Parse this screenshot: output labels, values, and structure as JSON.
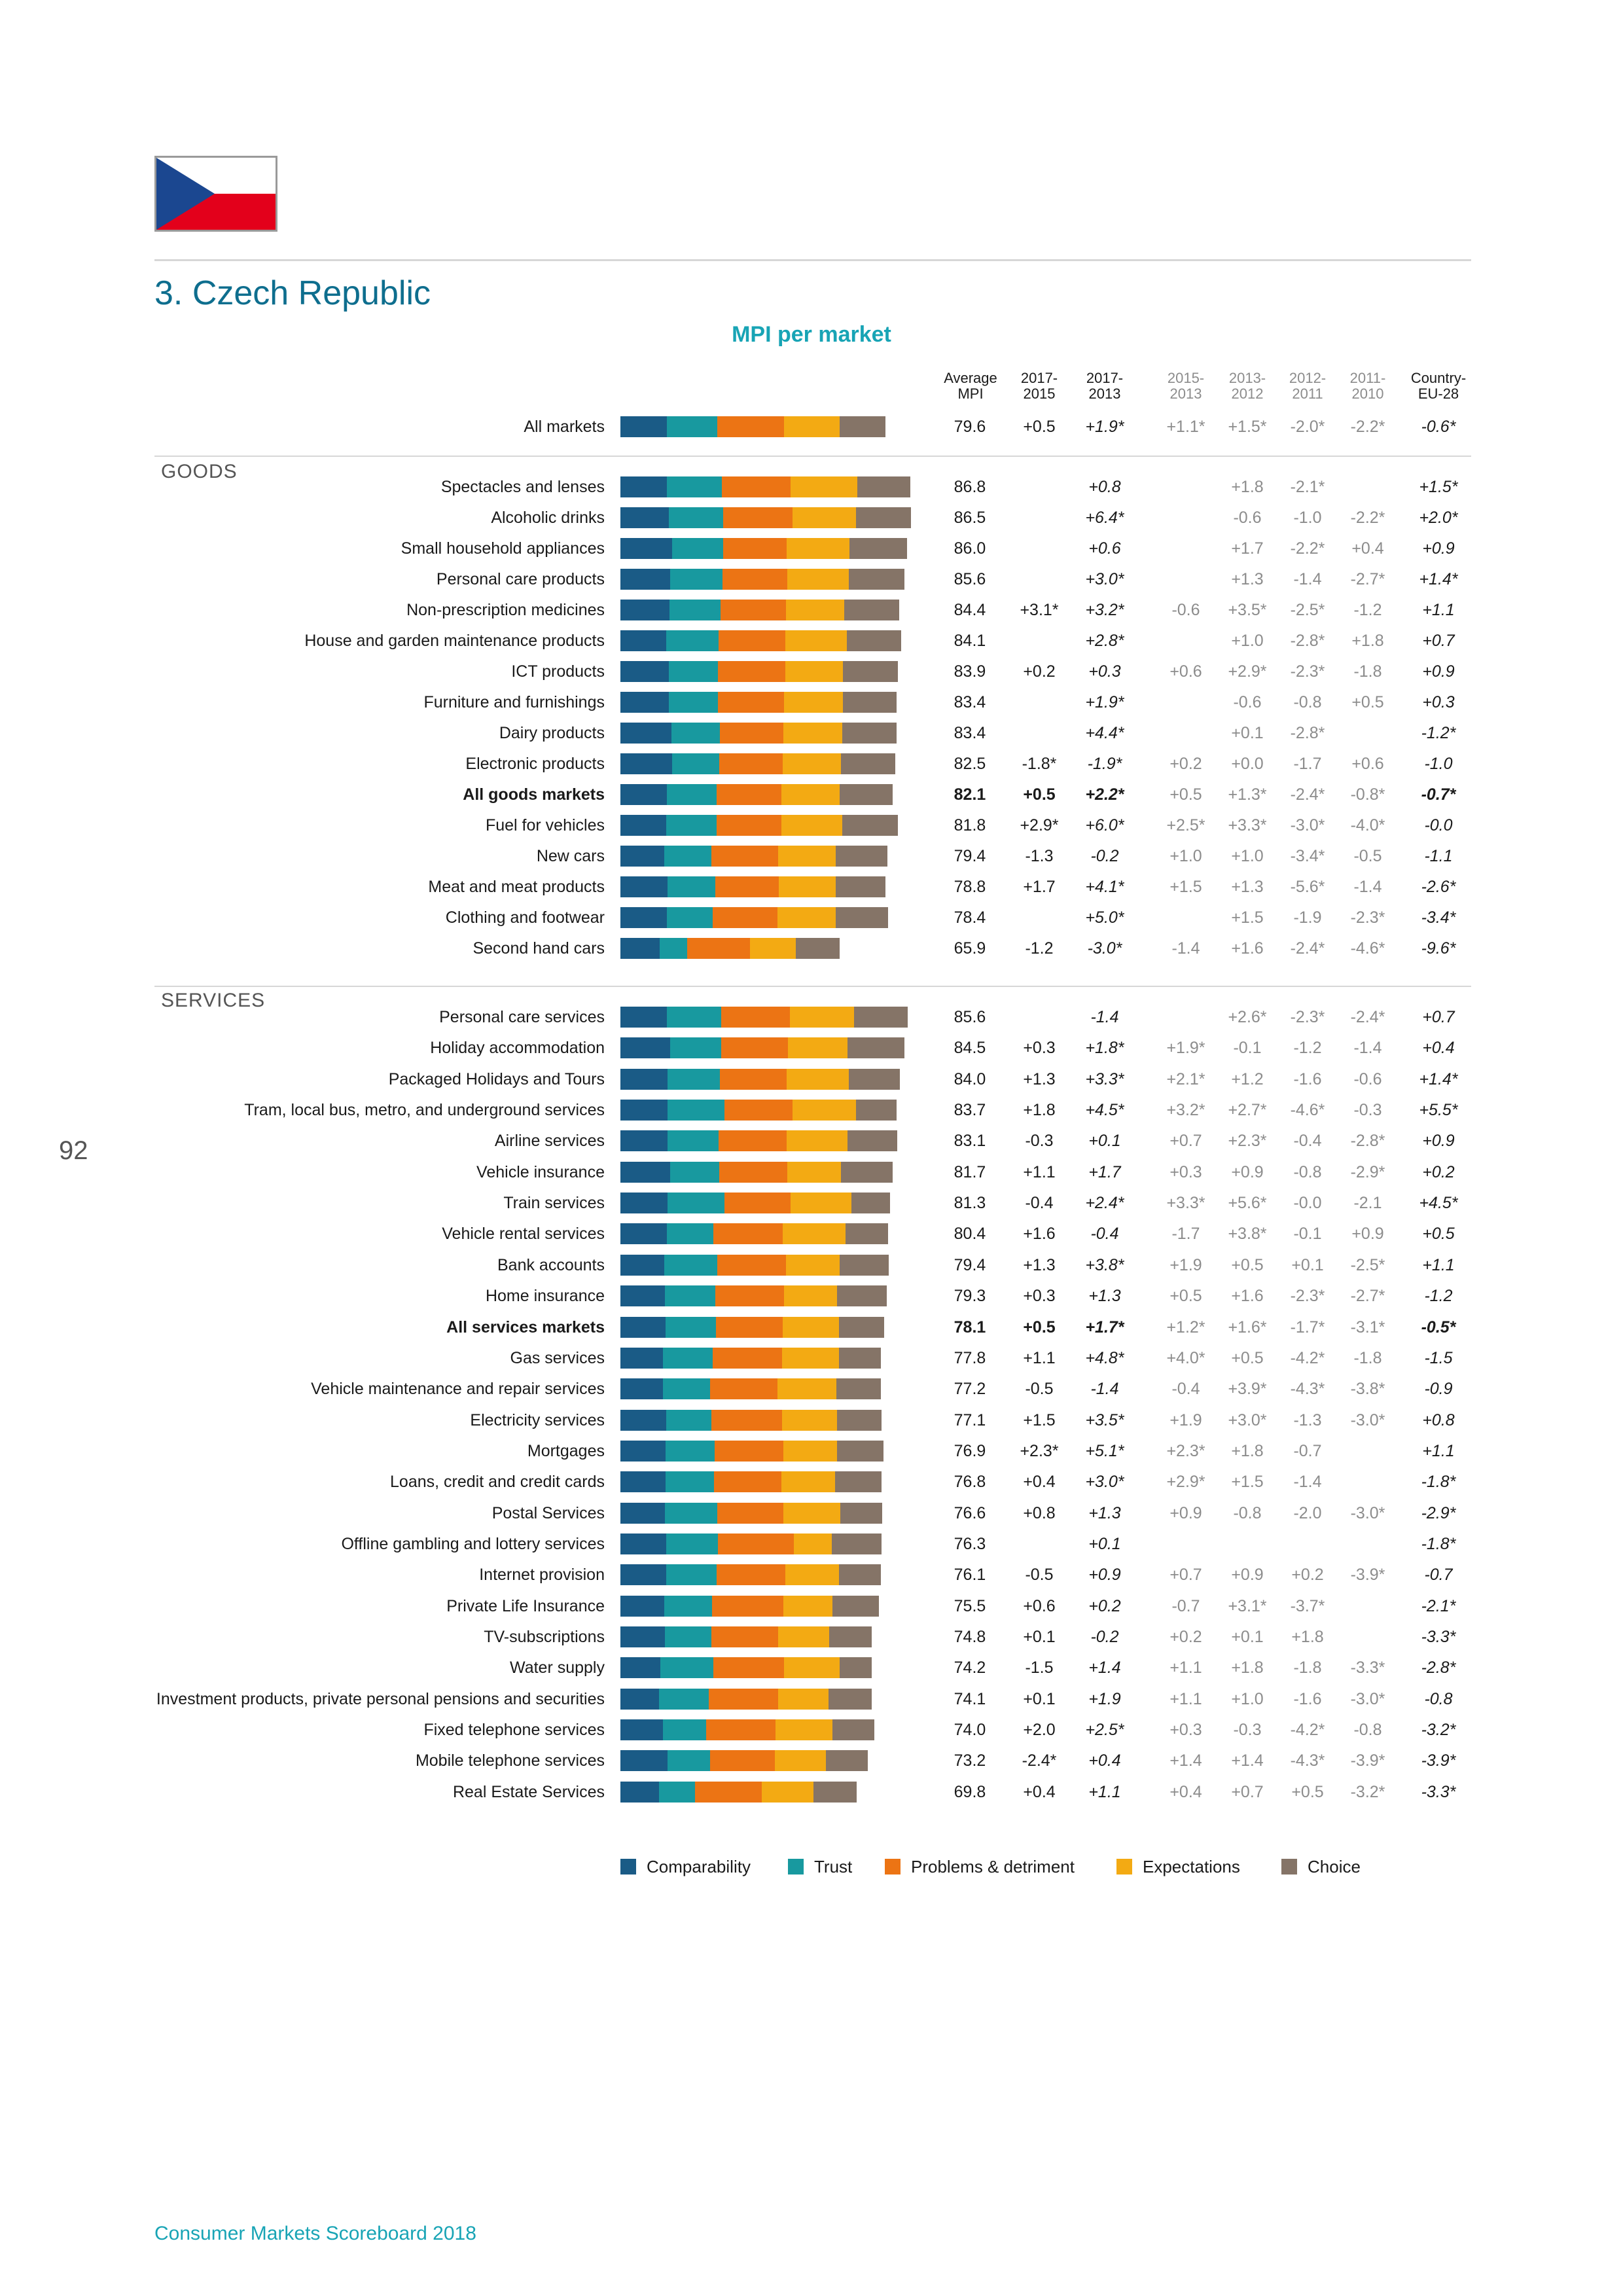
{
  "page": {
    "section_title": "3. Czech Republic",
    "chart_title": "MPI per market",
    "page_number": "92",
    "footer": "Consumer Markets Scoreboard 2018",
    "flag": "czech-flag"
  },
  "headers": {
    "mpi": "Average\nMPI",
    "a": "2017-\n2015",
    "b": "2017-\n2013",
    "g1": "2015-\n2013",
    "g2": "2013-\n2012",
    "g3": "2012-\n2011",
    "g4": "2011-\n2010",
    "eu": "Country-\nEU-28"
  },
  "groups": {
    "goods": "GOODS",
    "services": "SERVICES"
  },
  "colors": {
    "Comparability": "#1a5b86",
    "Trust": "#18999f",
    "Problems & detriment": "#ec7414",
    "Expectations": "#f3aa13",
    "Choice": "#857467"
  },
  "legend": [
    "Comparability",
    "Trust",
    "Problems & detriment",
    "Expectations",
    "Choice"
  ],
  "chart_data": {
    "type": "bar",
    "orientation": "horizontal-stacked",
    "series_names": [
      "Comparability",
      "Trust",
      "Problems & detriment",
      "Expectations",
      "Choice"
    ],
    "rows": [
      {
        "name": "All markets",
        "mpi": "79.6",
        "a": "+0.5",
        "b": "+1.9*",
        "g1": "+1.1*",
        "g2": "+1.5*",
        "g3": "-2.0*",
        "g4": "-2.2*",
        "eu": "-0.6*",
        "parts": [
          14.8,
          16.0,
          21.0,
          17.8,
          14.5
        ]
      },
      {
        "name": "Spectacles and lenses",
        "mpi": "86.8",
        "a": "",
        "b": "+0.8",
        "g1": "",
        "g2": "+1.8",
        "g3": "-2.1*",
        "g4": "",
        "eu": "+1.5*",
        "parts": [
          14.8,
          17.4,
          21.8,
          21.1,
          16.8
        ]
      },
      {
        "name": "Alcoholic drinks",
        "mpi": "86.5",
        "a": "",
        "b": "+6.4*",
        "g1": "",
        "g2": "-0.6",
        "g3": "-1.0",
        "g4": "-2.2*",
        "eu": "+2.0*",
        "parts": [
          15.3,
          17.3,
          22.0,
          20.0,
          17.6
        ]
      },
      {
        "name": "Small household appliances",
        "mpi": "86.0",
        "a": "",
        "b": "+0.6",
        "g1": "",
        "g2": "+1.7",
        "g3": "-2.2*",
        "g4": "+0.4",
        "eu": "+0.9",
        "parts": [
          16.4,
          16.2,
          20.2,
          19.8,
          18.2
        ]
      },
      {
        "name": "Personal care products",
        "mpi": "85.6",
        "a": "",
        "b": "+3.0*",
        "g1": "",
        "g2": "+1.3",
        "g3": "-1.4",
        "g4": "-2.7*",
        "eu": "+1.4*",
        "parts": [
          15.8,
          16.5,
          20.6,
          19.6,
          17.5
        ]
      },
      {
        "name": "Non-prescription medicines",
        "mpi": "84.4",
        "a": "+3.1*",
        "b": "+3.2*",
        "g1": "-0.6",
        "g2": "+3.5*",
        "g3": "-2.5*",
        "g4": "-1.2",
        "eu": "+1.1",
        "parts": [
          15.6,
          16.2,
          20.6,
          18.6,
          17.4
        ]
      },
      {
        "name": "House and garden maintenance products",
        "mpi": "84.1",
        "a": "",
        "b": "+2.8*",
        "g1": "",
        "g2": "+1.0",
        "g3": "-2.8*",
        "g4": "+1.8",
        "eu": "+0.7",
        "parts": [
          14.6,
          16.6,
          21.0,
          19.6,
          17.2
        ]
      },
      {
        "name": "ICT products",
        "mpi": "83.9",
        "a": "+0.2",
        "b": "+0.3",
        "g1": "+0.6",
        "g2": "+2.9*",
        "g3": "-2.3*",
        "g4": "-1.8",
        "eu": "+0.9",
        "parts": [
          15.4,
          15.6,
          21.2,
          18.4,
          17.4
        ]
      },
      {
        "name": "Furniture and furnishings",
        "mpi": "83.4",
        "a": "",
        "b": "+1.9*",
        "g1": "",
        "g2": "-0.6",
        "g3": "-0.8",
        "g4": "+0.5",
        "eu": "+0.3",
        "parts": [
          15.4,
          15.6,
          20.8,
          18.8,
          17.0
        ]
      },
      {
        "name": "Dairy products",
        "mpi": "83.4",
        "a": "",
        "b": "+4.4*",
        "g1": "",
        "g2": "+0.1",
        "g3": "-2.8*",
        "g4": "",
        "eu": "-1.2*",
        "parts": [
          16.2,
          15.3,
          20.2,
          18.6,
          17.3
        ]
      },
      {
        "name": "Electronic products",
        "mpi": "82.5",
        "a": "-1.8*",
        "b": "-1.9*",
        "g1": "+0.2",
        "g2": "+0.0",
        "g3": "-1.7",
        "g4": "+0.6",
        "eu": "-1.0",
        "parts": [
          16.4,
          15.0,
          20.0,
          18.6,
          17.2
        ]
      },
      {
        "name": "All goods markets",
        "mpi": "82.1",
        "a": "+0.5",
        "b": "+2.2*",
        "g1": "+0.5",
        "g2": "+1.3*",
        "g3": "-2.4*",
        "g4": "-0.8*",
        "eu": "-0.7*",
        "bold": true,
        "parts": [
          14.8,
          15.8,
          20.4,
          18.6,
          16.8
        ]
      },
      {
        "name": "Fuel for vehicles",
        "mpi": "81.8",
        "a": "+2.9*",
        "b": "+6.0*",
        "g1": "+2.5*",
        "g2": "+3.3*",
        "g3": "-3.0*",
        "g4": "-4.0*",
        "eu": "-0.0",
        "parts": [
          14.6,
          15.8,
          20.6,
          19.4,
          17.6
        ]
      },
      {
        "name": "New cars",
        "mpi": "79.4",
        "a": "-1.3",
        "b": "-0.2",
        "g1": "+1.0",
        "g2": "+1.0",
        "g3": "-3.4*",
        "g4": "-0.5",
        "eu": "-1.1",
        "parts": [
          13.8,
          15.0,
          21.2,
          18.2,
          16.4
        ]
      },
      {
        "name": "Meat and meat products",
        "mpi": "78.8",
        "a": "+1.7",
        "b": "+4.1*",
        "g1": "+1.5",
        "g2": "+1.3",
        "g3": "-5.6*",
        "g4": "-1.4",
        "eu": "-2.6*",
        "parts": [
          15.0,
          15.0,
          20.2,
          18.0,
          15.8
        ]
      },
      {
        "name": "Clothing and footwear",
        "mpi": "78.4",
        "a": "",
        "b": "+5.0*",
        "g1": "",
        "g2": "+1.5",
        "g3": "-1.9",
        "g4": "-2.3*",
        "eu": "-3.4*",
        "parts": [
          14.8,
          14.4,
          20.6,
          18.4,
          16.6
        ]
      },
      {
        "name": "Second hand cars",
        "mpi": "65.9",
        "a": "-1.2",
        "b": "-3.0*",
        "g1": "-1.4",
        "g2": "+1.6",
        "g3": "-2.4*",
        "g4": "-4.6*",
        "eu": "-9.6*",
        "parts": [
          12.4,
          8.8,
          19.8,
          14.6,
          13.8
        ]
      },
      {
        "name": "Personal care services",
        "mpi": "85.6",
        "a": "",
        "b": "-1.4",
        "g1": "",
        "g2": "+2.6*",
        "g3": "-2.3*",
        "g4": "-2.4*",
        "eu": "+0.7",
        "parts": [
          14.8,
          17.2,
          21.8,
          20.2,
          17.0
        ]
      },
      {
        "name": "Holiday accommodation",
        "mpi": "84.5",
        "a": "+0.3",
        "b": "+1.8*",
        "g1": "+1.9*",
        "g2": "-0.1",
        "g3": "-1.2",
        "g4": "-1.4",
        "eu": "+0.4",
        "parts": [
          15.8,
          16.2,
          21.2,
          18.8,
          18.0
        ]
      },
      {
        "name": "Packaged Holidays and Tours",
        "mpi": "84.0",
        "a": "+1.3",
        "b": "+3.3*",
        "g1": "+2.1*",
        "g2": "+1.2",
        "g3": "-1.6",
        "g4": "-0.6",
        "eu": "+1.4*",
        "parts": [
          15.0,
          16.6,
          21.2,
          19.6,
          16.2
        ]
      },
      {
        "name": "Tram, local bus, metro, and underground services",
        "mpi": "83.7",
        "a": "+1.8",
        "b": "+4.5*",
        "g1": "+3.2*",
        "g2": "+2.7*",
        "g3": "-4.6*",
        "g4": "-0.3",
        "eu": "+5.5*",
        "parts": [
          15.0,
          18.0,
          21.6,
          20.0,
          13.0
        ]
      },
      {
        "name": "Airline services",
        "mpi": "83.1",
        "a": "-0.3",
        "b": "+0.1",
        "g1": "+0.7",
        "g2": "+2.3*",
        "g3": "-0.4",
        "g4": "-2.8*",
        "eu": "+0.9",
        "parts": [
          15.0,
          16.2,
          21.6,
          19.2,
          15.8
        ]
      },
      {
        "name": "Vehicle insurance",
        "mpi": "81.7",
        "a": "+1.1",
        "b": "+1.7",
        "g1": "+0.3",
        "g2": "+0.9",
        "g3": "-0.8",
        "g4": "-2.9*",
        "eu": "+0.2",
        "parts": [
          15.8,
          15.6,
          21.6,
          17.0,
          16.4
        ]
      },
      {
        "name": "Train services",
        "mpi": "81.3",
        "a": "-0.4",
        "b": "+2.4*",
        "g1": "+3.3*",
        "g2": "+5.6*",
        "g3": "-0.0",
        "g4": "-2.1",
        "eu": "+4.5*",
        "parts": [
          15.0,
          18.0,
          21.0,
          19.2,
          12.2
        ]
      },
      {
        "name": "Vehicle rental services",
        "mpi": "80.4",
        "a": "+1.6",
        "b": "-0.4",
        "g1": "-1.7",
        "g2": "+3.8*",
        "g3": "-0.1",
        "g4": "+0.9",
        "eu": "+0.5",
        "parts": [
          14.8,
          14.6,
          22.0,
          20.0,
          13.4
        ]
      },
      {
        "name": "Bank accounts",
        "mpi": "79.4",
        "a": "+1.3",
        "b": "+3.8*",
        "g1": "+1.9",
        "g2": "+0.5",
        "g3": "+0.1",
        "g4": "-2.5*",
        "eu": "+1.1",
        "parts": [
          14.0,
          16.8,
          21.6,
          17.0,
          15.6
        ]
      },
      {
        "name": "Home insurance",
        "mpi": "79.3",
        "a": "+0.3",
        "b": "+1.3",
        "g1": "+0.5",
        "g2": "+1.6",
        "g3": "-2.3*",
        "g4": "-2.7*",
        "eu": "-1.2",
        "parts": [
          14.2,
          15.8,
          21.8,
          16.8,
          15.8
        ]
      },
      {
        "name": "All services markets",
        "mpi": "78.1",
        "a": "+0.5",
        "b": "+1.7*",
        "g1": "+1.2*",
        "g2": "+1.6*",
        "g3": "-1.7*",
        "g4": "-3.1*",
        "eu": "-0.5*",
        "bold": true,
        "parts": [
          14.4,
          15.8,
          21.2,
          17.8,
          14.4
        ]
      },
      {
        "name": "Gas services",
        "mpi": "77.8",
        "a": "+1.1",
        "b": "+4.8*",
        "g1": "+4.0*",
        "g2": "+0.5",
        "g3": "-4.2*",
        "g4": "-1.8",
        "eu": "-1.5",
        "parts": [
          13.4,
          15.8,
          22.0,
          18.0,
          13.4
        ]
      },
      {
        "name": "Vehicle maintenance and repair services",
        "mpi": "77.2",
        "a": "-0.5",
        "b": "-1.4",
        "g1": "-0.4",
        "g2": "+3.9*",
        "g3": "-4.3*",
        "g4": "-3.8*",
        "eu": "-0.9",
        "parts": [
          13.4,
          15.0,
          21.4,
          18.6,
          14.2
        ]
      },
      {
        "name": "Electricity services",
        "mpi": "77.1",
        "a": "+1.5",
        "b": "+3.5*",
        "g1": "+1.9",
        "g2": "+3.0*",
        "g3": "-1.3",
        "g4": "-3.0*",
        "eu": "+0.8",
        "parts": [
          14.6,
          14.2,
          22.4,
          17.4,
          14.2
        ]
      },
      {
        "name": "Mortgages",
        "mpi": "76.9",
        "a": "+2.3*",
        "b": "+5.1*",
        "g1": "+2.3*",
        "g2": "+1.8",
        "g3": "-0.7",
        "g4": "",
        "eu": "+1.1",
        "parts": [
          14.4,
          15.4,
          21.8,
          17.0,
          14.8
        ]
      },
      {
        "name": "Loans, credit and credit cards",
        "mpi": "76.8",
        "a": "+0.4",
        "b": "+3.0*",
        "g1": "+2.9*",
        "g2": "+1.5",
        "g3": "-1.4",
        "g4": "",
        "eu": "-1.8*",
        "parts": [
          14.4,
          15.2,
          21.4,
          17.0,
          14.8
        ]
      },
      {
        "name": "Postal Services",
        "mpi": "76.6",
        "a": "+0.8",
        "b": "+1.3",
        "g1": "+0.9",
        "g2": "-0.8",
        "g3": "-2.0",
        "g4": "-3.0*",
        "eu": "-2.9*",
        "parts": [
          14.2,
          16.6,
          20.8,
          18.2,
          13.2
        ]
      },
      {
        "name": "Offline gambling and lottery services",
        "mpi": "76.3",
        "a": "",
        "b": "+0.1",
        "g1": "",
        "g2": "",
        "g3": "",
        "g4": "",
        "eu": "-1.8*",
        "parts": [
          14.6,
          16.4,
          24.0,
          12.0,
          15.8
        ]
      },
      {
        "name": "Internet provision",
        "mpi": "76.1",
        "a": "-0.5",
        "b": "+0.9",
        "g1": "+0.7",
        "g2": "+0.9",
        "g3": "+0.2",
        "g4": "-3.9*",
        "eu": "-0.7",
        "parts": [
          14.6,
          15.8,
          21.8,
          17.0,
          13.4
        ]
      },
      {
        "name": "Private Life Insurance",
        "mpi": "75.5",
        "a": "+0.6",
        "b": "+0.2",
        "g1": "-0.7",
        "g2": "+3.1*",
        "g3": "-3.7*",
        "g4": "",
        "eu": "-2.1*",
        "parts": [
          13.8,
          15.2,
          22.6,
          15.6,
          14.8
        ]
      },
      {
        "name": "TV-subscriptions",
        "mpi": "74.8",
        "a": "+0.1",
        "b": "-0.2",
        "g1": "+0.2",
        "g2": "+0.1",
        "g3": "+1.8",
        "g4": "",
        "eu": "-3.3*",
        "parts": [
          14.2,
          14.6,
          21.2,
          16.2,
          13.4
        ]
      },
      {
        "name": "Water supply",
        "mpi": "74.2",
        "a": "-1.5",
        "b": "+1.4",
        "g1": "+1.1",
        "g2": "+1.8",
        "g3": "-1.8",
        "g4": "-3.3*",
        "eu": "-2.8*",
        "parts": [
          12.6,
          16.8,
          22.4,
          17.8,
          10.0
        ]
      },
      {
        "name": "Investment products, private personal pensions and securities",
        "mpi": "74.1",
        "a": "+0.1",
        "b": "+1.9",
        "g1": "+1.1",
        "g2": "+1.0",
        "g3": "-1.6",
        "g4": "-3.0*",
        "eu": "-0.8",
        "parts": [
          12.2,
          15.8,
          22.0,
          16.0,
          13.6
        ]
      },
      {
        "name": "Fixed telephone services",
        "mpi": "74.0",
        "a": "+2.0",
        "b": "+2.5*",
        "g1": "+0.3",
        "g2": "-0.3",
        "g3": "-4.2*",
        "g4": "-0.8",
        "eu": "-3.2*",
        "parts": [
          13.4,
          13.8,
          22.0,
          18.0,
          13.4
        ]
      },
      {
        "name": "Mobile telephone services",
        "mpi": "73.2",
        "a": "-2.4*",
        "b": "+0.4",
        "g1": "+1.4",
        "g2": "+1.4",
        "g3": "-4.3*",
        "g4": "-3.9*",
        "eu": "-3.9*",
        "parts": [
          15.0,
          13.4,
          20.6,
          16.2,
          13.2
        ]
      },
      {
        "name": "Real Estate Services",
        "mpi": "69.8",
        "a": "+0.4",
        "b": "+1.1",
        "g1": "+0.4",
        "g2": "+0.7",
        "g3": "+0.5",
        "g4": "-3.2*",
        "eu": "-3.3*",
        "parts": [
          12.2,
          11.4,
          21.2,
          16.4,
          13.8
        ]
      }
    ]
  }
}
